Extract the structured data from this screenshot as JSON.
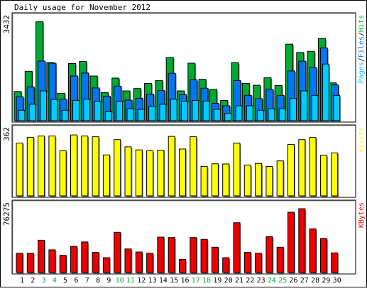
{
  "title": "Daily usage for November 2012",
  "colors": {
    "hits": "#00aa33",
    "files": "#0077ee",
    "pages": "#00ccff",
    "visits": "#ffff00",
    "kbytes": "#ee0000",
    "weekend_label": "#00aa33",
    "weekday_label": "#000000",
    "frame": "#000000",
    "panel_bg": "#ffffff"
  },
  "chart_data": [
    {
      "type": "bar",
      "panel": "top",
      "ymax_label": "3432",
      "ylim": [
        0,
        3432
      ],
      "legend": [
        {
          "text": "Pages",
          "color_key": "pages"
        },
        {
          "text": "/",
          "color_key": "frame"
        },
        {
          "text": "Files",
          "color_key": "files"
        },
        {
          "text": "/",
          "color_key": "frame"
        },
        {
          "text": "Hits",
          "color_key": "hits"
        }
      ],
      "categories": [
        "1",
        "2",
        "3",
        "4",
        "5",
        "6",
        "7",
        "8",
        "9",
        "10",
        "11",
        "12",
        "13",
        "14",
        "15",
        "16",
        "17",
        "18",
        "19",
        "20",
        "21",
        "22",
        "23",
        "24",
        "25",
        "26",
        "27",
        "28",
        "29",
        "30"
      ],
      "series": [
        {
          "name": "Hits",
          "color_key": "hits",
          "values": [
            980,
            1660,
            3320,
            1950,
            920,
            1920,
            1990,
            1500,
            940,
            1430,
            1000,
            1080,
            1250,
            1350,
            2120,
            1000,
            1930,
            1390,
            1050,
            680,
            1950,
            1250,
            1190,
            1440,
            1180,
            2570,
            2290,
            2330,
            2760,
            1270
          ]
        },
        {
          "name": "Files",
          "color_key": "files",
          "values": [
            800,
            1130,
            2000,
            1930,
            720,
            1500,
            1600,
            1100,
            820,
            1160,
            690,
            750,
            890,
            1010,
            1590,
            870,
            1370,
            1090,
            580,
            500,
            1350,
            850,
            740,
            1050,
            850,
            1670,
            2000,
            1780,
            2440,
            1200
          ]
        },
        {
          "name": "Pages",
          "color_key": "pages",
          "values": [
            350,
            550,
            1000,
            710,
            350,
            680,
            720,
            650,
            300,
            650,
            400,
            380,
            480,
            550,
            720,
            650,
            680,
            660,
            380,
            250,
            500,
            500,
            350,
            400,
            400,
            750,
            1000,
            850,
            1900,
            850
          ]
        }
      ]
    },
    {
      "type": "bar",
      "panel": "middle",
      "ymax_label": "362",
      "ylim": [
        0,
        362
      ],
      "legend": [
        {
          "text": "Visits",
          "color_key": "visits"
        }
      ],
      "categories": [
        "1",
        "2",
        "3",
        "4",
        "5",
        "6",
        "7",
        "8",
        "9",
        "10",
        "11",
        "12",
        "13",
        "14",
        "15",
        "16",
        "17",
        "18",
        "19",
        "20",
        "21",
        "22",
        "23",
        "24",
        "25",
        "26",
        "27",
        "28",
        "29",
        "30"
      ],
      "series": [
        {
          "name": "Visits",
          "color_key": "visits",
          "values": [
            293,
            325,
            332,
            332,
            250,
            338,
            332,
            328,
            227,
            312,
            272,
            255,
            250,
            253,
            330,
            260,
            328,
            163,
            178,
            177,
            292,
            171,
            180,
            163,
            194,
            285,
            312,
            324,
            225,
            238
          ]
        }
      ]
    },
    {
      "type": "bar",
      "panel": "bottom",
      "ymax_label": "76275",
      "ylim": [
        0,
        76275
      ],
      "legend": [
        {
          "text": "KBytes",
          "color_key": "kbytes"
        }
      ],
      "categories": [
        "1",
        "2",
        "3",
        "4",
        "5",
        "6",
        "7",
        "8",
        "9",
        "10",
        "11",
        "12",
        "13",
        "14",
        "15",
        "16",
        "17",
        "18",
        "19",
        "20",
        "21",
        "22",
        "23",
        "24",
        "25",
        "26",
        "27",
        "28",
        "29",
        "30"
      ],
      "series": [
        {
          "name": "KBytes",
          "color_key": "kbytes",
          "values": [
            22000,
            22000,
            37000,
            26000,
            19700,
            30000,
            35000,
            23000,
            17000,
            46000,
            27000,
            23500,
            22000,
            40500,
            40000,
            15000,
            40000,
            38000,
            29000,
            17000,
            57000,
            23000,
            22000,
            41000,
            29000,
            69000,
            73000,
            50000,
            39000,
            22500
          ]
        }
      ]
    }
  ],
  "day_labels": [
    {
      "text": "1",
      "weekend": false
    },
    {
      "text": "2",
      "weekend": false
    },
    {
      "text": "3",
      "weekend": true
    },
    {
      "text": "4",
      "weekend": true
    },
    {
      "text": "5",
      "weekend": false
    },
    {
      "text": "6",
      "weekend": false
    },
    {
      "text": "7",
      "weekend": false
    },
    {
      "text": "8",
      "weekend": false
    },
    {
      "text": "9",
      "weekend": false
    },
    {
      "text": "10",
      "weekend": true
    },
    {
      "text": "11",
      "weekend": true
    },
    {
      "text": "12",
      "weekend": false
    },
    {
      "text": "13",
      "weekend": false
    },
    {
      "text": "14",
      "weekend": false
    },
    {
      "text": "15",
      "weekend": false
    },
    {
      "text": "16",
      "weekend": false
    },
    {
      "text": "17",
      "weekend": true
    },
    {
      "text": "18",
      "weekend": true
    },
    {
      "text": "19",
      "weekend": false
    },
    {
      "text": "20",
      "weekend": false
    },
    {
      "text": "21",
      "weekend": false
    },
    {
      "text": "22",
      "weekend": false
    },
    {
      "text": "23",
      "weekend": false
    },
    {
      "text": "24",
      "weekend": true
    },
    {
      "text": "25",
      "weekend": true
    },
    {
      "text": "26",
      "weekend": false
    },
    {
      "text": "27",
      "weekend": false
    },
    {
      "text": "28",
      "weekend": false
    },
    {
      "text": "29",
      "weekend": false
    },
    {
      "text": "30",
      "weekend": false
    }
  ]
}
